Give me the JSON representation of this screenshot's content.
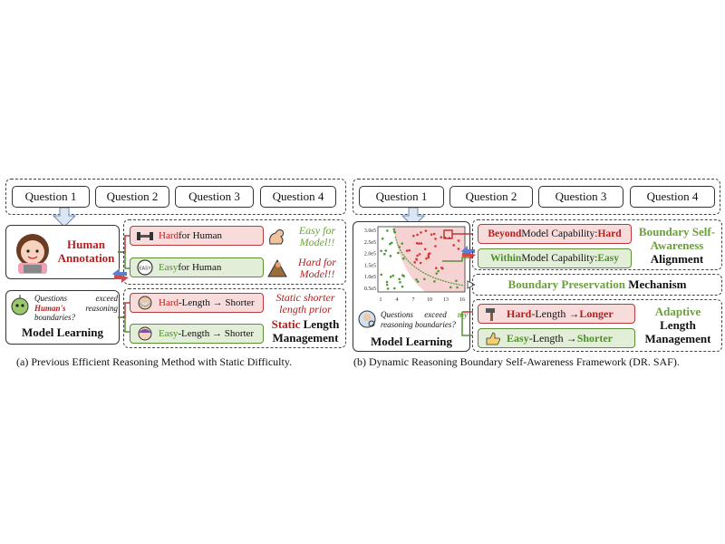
{
  "left": {
    "questions": [
      "Question 1",
      "Question 2",
      "Question 3",
      "Question 4"
    ],
    "human_annotation": "Human Annotation",
    "hard_human": {
      "word": "Hard",
      "rest": " for Human"
    },
    "easy_human": {
      "word": "Easy",
      "rest": " for Human"
    },
    "easy_model": "Easy for Model!!",
    "hard_model": "Hard for Model!!",
    "question_text": {
      "pre": "Questions exceed ",
      "emph": "Human's",
      "post": " reasoning boundaries?"
    },
    "model_learning": "Model Learning",
    "hard_len": {
      "word": "Hard",
      "rest": "-Length → Shorter"
    },
    "easy_len": {
      "word": "Easy",
      "rest": "-Length → Shorter"
    },
    "static_prior": "Static shorter length prior",
    "static_mgmt": {
      "word": "Static",
      "rest": " Length Management"
    },
    "easy_badge": "EASY",
    "caption": "(a) Previous Efficient Reasoning Method with Static Difficulty."
  },
  "right": {
    "questions": [
      "Question 1",
      "Question 2",
      "Question 3",
      "Question 4"
    ],
    "model_learning": "Model Learning",
    "question_text": {
      "pre": "Questions exceed ",
      "emph": "my",
      "post": " reasoning boundaries?"
    },
    "beyond": {
      "word": "Beyond",
      "mid": " Model Capability: ",
      "level": "Hard"
    },
    "within": {
      "word": "Within",
      "mid": " Model Capability: ",
      "level": "Easy"
    },
    "bsa": {
      "colored": "Boundary Self-Awareness",
      "rest": "Alignment"
    },
    "bpm": {
      "colored": "Boundary Preservation",
      "rest": " Mechanism"
    },
    "hard_len": {
      "word": "Hard",
      "mid": "-Length → ",
      "target": "Longer"
    },
    "easy_len": {
      "word": "Easy",
      "mid": "-Length → ",
      "target": "Shorter"
    },
    "alm": {
      "colored": "Adaptive",
      "rest": "Length Management"
    },
    "caption": "(b) Dynamic Reasoning Boundary Self-Awareness Framework (DR. SAF)."
  },
  "chart_data": {
    "type": "scatter",
    "y_ticks": [
      "3.0e5",
      "2.5e5",
      "2.0e5",
      "1.5e5",
      "1.0e5",
      "0.5e5"
    ],
    "x_ticks": [
      "1",
      "4",
      "7",
      "10",
      "13",
      "16"
    ],
    "xlim": [
      1,
      16
    ],
    "ylim": [
      0,
      300000
    ],
    "colors": {
      "hard": "#d23a3a",
      "easy": "#4e9a3a",
      "region": "#f7d2d2"
    }
  }
}
